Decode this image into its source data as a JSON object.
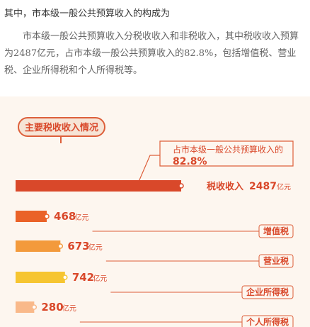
{
  "intro": "其中，市本级一般公共预算收入的构成为",
  "paragraph": [
    "市本级一般公共预算收入分税收收入和非税收入，其中税收收入预算",
    "为2487亿元，占市本级一般公共预算收入的82.8%，包括增值税、营业税、",
    "企业所得税和个人所得税等。"
  ],
  "chart_data": {
    "type": "bar",
    "title": "主要税收收入情况",
    "unit": "亿元",
    "callout": {
      "label": "占市本级一般公共预算收入的",
      "value": "82.8%"
    },
    "categories": [
      "税收收入",
      "增值税",
      "营业税",
      "企业所得税",
      "个人所得税"
    ],
    "values": [
      2487,
      468,
      673,
      742,
      280
    ],
    "value_labels": [
      "2487",
      "468",
      "673",
      "742",
      "280"
    ],
    "colors": [
      "#d9482a",
      "#ea6228",
      "#f39a3c",
      "#f6c531",
      "#f9b98a"
    ],
    "label_boxed": [
      false,
      true,
      true,
      true,
      true
    ]
  }
}
